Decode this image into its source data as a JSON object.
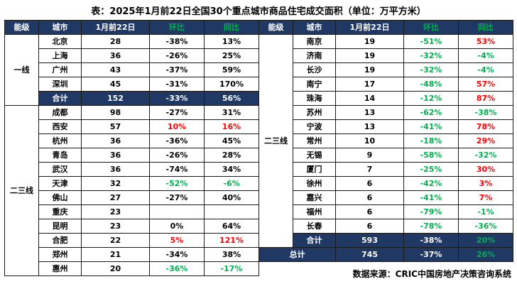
{
  "title": "表：2025年1月前22日全国30个重点城市商品住宅成交面积（单位：万平方米）",
  "source": "数据来源：CRIC中国房地产决策咨询系统",
  "colors": {
    "red": "#FF0000",
    "green": "#00B050",
    "header_bg": "#1F3864",
    "header_text": "#FFFFFF",
    "border": "#1A1A1A"
  },
  "headers": [
    {
      "label": "能级",
      "color": "#FFFFFF"
    },
    {
      "label": "城市",
      "color": "#FFFFFF"
    },
    {
      "label": "1月前22日",
      "color": "#FFFFFF"
    },
    {
      "label": "环比",
      "color": "#00B050"
    },
    {
      "label": "同比",
      "color": "#00B050"
    }
  ],
  "chart_data": {
    "type": "table",
    "left_table": {
      "groups": [
        {
          "tier": "一线",
          "start": 0,
          "span": 5
        },
        {
          "tier": "二三线",
          "start": 5,
          "span": 12
        }
      ],
      "rows": [
        {
          "kind": "data",
          "city": "北京",
          "value": "28",
          "mom": "-38%",
          "yoy": "13%"
        },
        {
          "kind": "data",
          "city": "上海",
          "value": "36",
          "mom": "-26%",
          "yoy": "25%"
        },
        {
          "kind": "data",
          "city": "广州",
          "value": "43",
          "mom": "-37%",
          "yoy": "59%"
        },
        {
          "kind": "data",
          "city": "深圳",
          "value": "45",
          "mom": "-31%",
          "yoy": "170%"
        },
        {
          "kind": "total",
          "city": "合计",
          "value": "152",
          "mom": "-33%",
          "yoy": "56%"
        },
        {
          "kind": "data",
          "city": "成都",
          "value": "98",
          "mom": "-27%",
          "yoy": "31%"
        },
        {
          "kind": "data",
          "city": "西安",
          "value": "57",
          "mom": "10%",
          "yoy": "16%",
          "mc": "red",
          "yc": "red"
        },
        {
          "kind": "data",
          "city": "杭州",
          "value": "36",
          "mom": "-36%",
          "yoy": "45%"
        },
        {
          "kind": "data",
          "city": "青岛",
          "value": "36",
          "mom": "-26%",
          "yoy": "28%"
        },
        {
          "kind": "data",
          "city": "武汉",
          "value": "36",
          "mom": "-74%",
          "yoy": "34%"
        },
        {
          "kind": "data",
          "city": "天津",
          "value": "32",
          "mom": "-52%",
          "yoy": "-6%",
          "mc": "green",
          "yc": "green"
        },
        {
          "kind": "data",
          "city": "佛山",
          "value": "27",
          "mom": "-27%",
          "yoy": "40%"
        },
        {
          "kind": "data",
          "city": "重庆",
          "value": "23",
          "mom": "",
          "yoy": ""
        },
        {
          "kind": "data",
          "city": "昆明",
          "value": "23",
          "mom": "0%",
          "yoy": "64%"
        },
        {
          "kind": "data",
          "city": "合肥",
          "value": "22",
          "mom": "5%",
          "yoy": "121%",
          "mc": "red",
          "yc": "red"
        },
        {
          "kind": "data",
          "city": "郑州",
          "value": "21",
          "mom": "-34%",
          "yoy": "38%"
        },
        {
          "kind": "data",
          "city": "惠州",
          "value": "20",
          "mom": "-36%",
          "yoy": "-17%",
          "mc": "green",
          "yc": "green"
        }
      ]
    },
    "right_table": {
      "groups": [
        {
          "tier": "二三线",
          "start": 0,
          "span": 15
        }
      ],
      "rows": [
        {
          "kind": "data",
          "city": "南京",
          "value": "19",
          "mom": "-51%",
          "yoy": "53%",
          "mc": "green",
          "yc": "red"
        },
        {
          "kind": "data",
          "city": "济南",
          "value": "19",
          "mom": "-32%",
          "yoy": "-4%",
          "mc": "green",
          "yc": "green"
        },
        {
          "kind": "data",
          "city": "长沙",
          "value": "19",
          "mom": "-32%",
          "yoy": "-4%",
          "mc": "green",
          "yc": "green"
        },
        {
          "kind": "data",
          "city": "南宁",
          "value": "17",
          "mom": "-48%",
          "yoy": "57%",
          "mc": "green",
          "yc": "red"
        },
        {
          "kind": "data",
          "city": "珠海",
          "value": "14",
          "mom": "-12%",
          "yoy": "87%",
          "mc": "green",
          "yc": "red"
        },
        {
          "kind": "data",
          "city": "苏州",
          "value": "13",
          "mom": "-62%",
          "yoy": "-38%",
          "mc": "green",
          "yc": "green"
        },
        {
          "kind": "data",
          "city": "宁波",
          "value": "13",
          "mom": "-41%",
          "yoy": "78%",
          "mc": "green",
          "yc": "red"
        },
        {
          "kind": "data",
          "city": "常州",
          "value": "10",
          "mom": "-18%",
          "yoy": "29%",
          "mc": "green",
          "yc": "red"
        },
        {
          "kind": "data",
          "city": "无锡",
          "value": "9",
          "mom": "-58%",
          "yoy": "-32%",
          "mc": "green",
          "yc": "green"
        },
        {
          "kind": "data",
          "city": "厦门",
          "value": "7",
          "mom": "-25%",
          "yoy": "30%",
          "mc": "green",
          "yc": "red"
        },
        {
          "kind": "data",
          "city": "徐州",
          "value": "6",
          "mom": "-42%",
          "yoy": "3%",
          "mc": "green",
          "yc": "red"
        },
        {
          "kind": "data",
          "city": "嘉兴",
          "value": "6",
          "mom": "-41%",
          "yoy": "7%",
          "mc": "green",
          "yc": "red"
        },
        {
          "kind": "data",
          "city": "福州",
          "value": "6",
          "mom": "-79%",
          "yoy": "-1%",
          "mc": "green",
          "yc": "green"
        },
        {
          "kind": "data",
          "city": "长春",
          "value": "6",
          "mom": "-78%",
          "yoy": "-36%",
          "mc": "green",
          "yc": "green"
        },
        {
          "kind": "total",
          "city": "合计",
          "value": "593",
          "mom": "-38%",
          "yoy": "20%",
          "yc": "green"
        },
        {
          "kind": "grand",
          "city": "总计",
          "value": "745",
          "mom": "-37%",
          "yoy": "26%",
          "yc": "green",
          "span2": true
        }
      ]
    }
  }
}
